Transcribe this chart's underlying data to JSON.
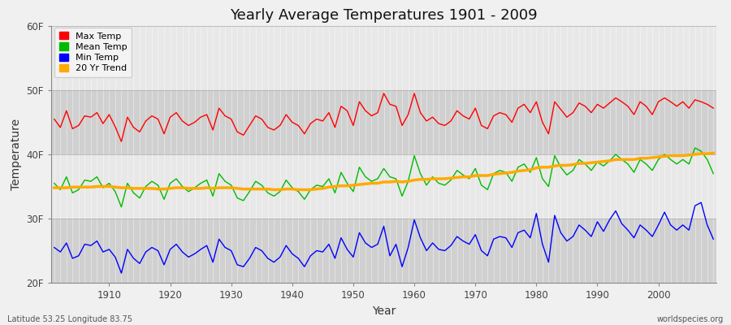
{
  "years": [
    1901,
    1902,
    1903,
    1904,
    1905,
    1906,
    1907,
    1908,
    1909,
    1910,
    1911,
    1912,
    1913,
    1914,
    1915,
    1916,
    1917,
    1918,
    1919,
    1920,
    1921,
    1922,
    1923,
    1924,
    1925,
    1926,
    1927,
    1928,
    1929,
    1930,
    1931,
    1932,
    1933,
    1934,
    1935,
    1936,
    1937,
    1938,
    1939,
    1940,
    1941,
    1942,
    1943,
    1944,
    1945,
    1946,
    1947,
    1948,
    1949,
    1950,
    1951,
    1952,
    1953,
    1954,
    1955,
    1956,
    1957,
    1958,
    1959,
    1960,
    1961,
    1962,
    1963,
    1964,
    1965,
    1966,
    1967,
    1968,
    1969,
    1970,
    1971,
    1972,
    1973,
    1974,
    1975,
    1976,
    1977,
    1978,
    1979,
    1980,
    1981,
    1982,
    1983,
    1984,
    1985,
    1986,
    1987,
    1988,
    1989,
    1990,
    1991,
    1992,
    1993,
    1994,
    1995,
    1996,
    1997,
    1998,
    1999,
    2000,
    2001,
    2002,
    2003,
    2004,
    2005,
    2006,
    2007,
    2008,
    2009
  ],
  "max_temps": [
    45.5,
    44.2,
    46.8,
    44.0,
    44.5,
    46.0,
    45.8,
    46.5,
    44.8,
    46.2,
    44.3,
    42.0,
    45.8,
    44.2,
    43.5,
    45.2,
    46.0,
    45.5,
    43.2,
    45.8,
    46.5,
    45.2,
    44.5,
    45.0,
    45.8,
    46.2,
    43.8,
    47.2,
    46.0,
    45.5,
    43.5,
    43.0,
    44.5,
    46.0,
    45.5,
    44.2,
    43.8,
    44.5,
    46.2,
    45.0,
    44.5,
    43.2,
    44.8,
    45.5,
    45.2,
    46.5,
    44.2,
    47.5,
    46.8,
    44.5,
    48.2,
    46.8,
    46.0,
    46.5,
    49.5,
    47.8,
    47.5,
    44.5,
    46.2,
    49.5,
    46.5,
    45.2,
    45.8,
    44.8,
    44.5,
    45.2,
    46.8,
    46.0,
    45.5,
    47.2,
    44.5,
    44.0,
    46.0,
    46.5,
    46.2,
    45.0,
    47.2,
    47.8,
    46.5,
    48.2,
    45.0,
    43.2,
    48.2,
    47.0,
    45.8,
    46.5,
    48.0,
    47.5,
    46.5,
    47.8,
    47.2,
    48.0,
    48.8,
    48.2,
    47.5,
    46.2,
    48.2,
    47.5,
    46.2,
    48.2,
    48.8,
    48.2,
    47.5,
    48.2,
    47.2,
    48.5,
    48.2,
    47.8,
    47.2
  ],
  "mean_temps": [
    35.5,
    34.5,
    36.5,
    34.0,
    34.5,
    36.0,
    35.8,
    36.5,
    34.8,
    35.5,
    34.2,
    31.8,
    35.5,
    34.0,
    33.2,
    35.0,
    35.8,
    35.2,
    33.0,
    35.5,
    36.2,
    35.0,
    34.2,
    34.8,
    35.5,
    36.0,
    33.5,
    37.0,
    35.8,
    35.2,
    33.2,
    32.8,
    34.2,
    35.8,
    35.2,
    34.0,
    33.5,
    34.2,
    36.0,
    34.8,
    34.2,
    33.0,
    34.5,
    35.2,
    35.0,
    36.2,
    34.0,
    37.2,
    35.5,
    34.2,
    38.0,
    36.5,
    35.8,
    36.2,
    37.8,
    36.5,
    36.2,
    33.5,
    35.8,
    39.8,
    37.0,
    35.2,
    36.5,
    35.5,
    35.2,
    36.0,
    37.5,
    36.8,
    36.2,
    37.8,
    35.2,
    34.5,
    37.0,
    37.5,
    37.2,
    35.8,
    38.0,
    38.5,
    37.2,
    39.5,
    36.2,
    35.0,
    39.8,
    38.0,
    36.8,
    37.5,
    39.2,
    38.5,
    37.5,
    38.8,
    38.2,
    39.0,
    40.0,
    39.2,
    38.5,
    37.2,
    39.2,
    38.5,
    37.5,
    39.2,
    40.0,
    39.2,
    38.5,
    39.2,
    38.5,
    41.0,
    40.5,
    39.2,
    37.0
  ],
  "min_temps": [
    25.5,
    24.8,
    26.2,
    23.8,
    24.2,
    26.0,
    25.8,
    26.5,
    24.8,
    25.2,
    24.0,
    21.5,
    25.2,
    23.8,
    23.0,
    24.8,
    25.5,
    25.0,
    22.8,
    25.2,
    26.0,
    24.8,
    24.0,
    24.5,
    25.2,
    25.8,
    23.2,
    26.8,
    25.5,
    25.0,
    22.8,
    22.5,
    23.8,
    25.5,
    25.0,
    23.8,
    23.2,
    24.0,
    25.8,
    24.5,
    23.8,
    22.5,
    24.2,
    25.0,
    24.8,
    26.0,
    23.8,
    27.0,
    25.2,
    24.0,
    27.8,
    26.2,
    25.5,
    26.0,
    28.8,
    24.2,
    26.0,
    22.5,
    25.5,
    29.8,
    27.0,
    25.0,
    26.2,
    25.2,
    25.0,
    25.8,
    27.2,
    26.5,
    26.0,
    27.5,
    25.0,
    24.2,
    26.8,
    27.2,
    27.0,
    25.5,
    27.8,
    28.2,
    27.0,
    30.8,
    26.0,
    23.2,
    30.5,
    27.8,
    26.5,
    27.2,
    29.0,
    28.2,
    27.2,
    29.5,
    28.0,
    29.8,
    31.2,
    29.2,
    28.2,
    27.0,
    29.0,
    28.2,
    27.2,
    29.0,
    31.0,
    29.0,
    28.2,
    29.0,
    28.2,
    32.0,
    32.5,
    29.0,
    26.8
  ],
  "trend_20yr": [
    34.8,
    34.8,
    34.8,
    34.9,
    34.9,
    34.9,
    34.9,
    35.0,
    35.0,
    35.0,
    34.9,
    34.8,
    34.8,
    34.7,
    34.7,
    34.7,
    34.7,
    34.6,
    34.6,
    34.7,
    34.8,
    34.8,
    34.7,
    34.7,
    34.7,
    34.8,
    34.7,
    34.8,
    34.8,
    34.8,
    34.7,
    34.6,
    34.6,
    34.6,
    34.6,
    34.6,
    34.5,
    34.5,
    34.6,
    34.6,
    34.5,
    34.5,
    34.5,
    34.6,
    34.7,
    34.9,
    35.0,
    35.1,
    35.1,
    35.2,
    35.3,
    35.4,
    35.5,
    35.5,
    35.7,
    35.7,
    35.8,
    35.7,
    35.8,
    36.0,
    36.1,
    36.1,
    36.2,
    36.2,
    36.2,
    36.3,
    36.4,
    36.5,
    36.5,
    36.7,
    36.7,
    36.7,
    36.9,
    37.0,
    37.1,
    37.2,
    37.4,
    37.5,
    37.6,
    37.9,
    38.0,
    38.0,
    38.2,
    38.3,
    38.3,
    38.4,
    38.6,
    38.6,
    38.7,
    38.8,
    38.9,
    39.0,
    39.2,
    39.2,
    39.2,
    39.2,
    39.4,
    39.4,
    39.5,
    39.6,
    39.7,
    39.8,
    39.8,
    39.8,
    39.9,
    40.0,
    40.1,
    40.1,
    40.2
  ],
  "title": "Yearly Average Temperatures 1901 - 2009",
  "xlabel": "Year",
  "ylabel": "Temperature",
  "ylim_min": 20,
  "ylim_max": 60,
  "yticks": [
    20,
    30,
    40,
    50,
    60
  ],
  "ytick_labels": [
    "20F",
    "30F",
    "40F",
    "50F",
    "60F"
  ],
  "max_color": "#ff0000",
  "mean_color": "#00bb00",
  "min_color": "#0000ff",
  "trend_color": "#ffaa00",
  "plot_bg_color": "#dcdcdc",
  "band_light_color": "#e8e8e8",
  "band_dark_color": "#d0d0d0",
  "fig_bg_color": "#f0f0f0",
  "grid_color": "#ffffff",
  "legend_labels": [
    "Max Temp",
    "Mean Temp",
    "Min Temp",
    "20 Yr Trend"
  ],
  "lat_lon_text": "Latitude 53.25 Longitude 83.75",
  "watermark_text": "worldspecies.org",
  "xticks": [
    1910,
    1920,
    1930,
    1940,
    1950,
    1960,
    1970,
    1980,
    1990,
    2000
  ]
}
